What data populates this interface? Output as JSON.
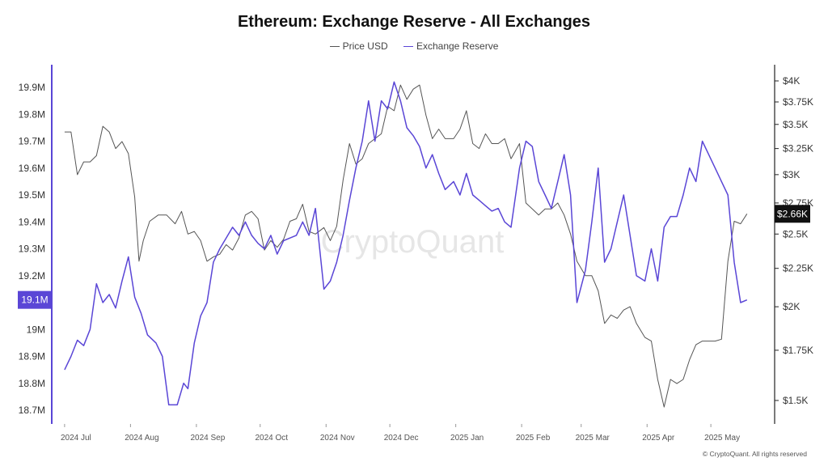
{
  "chart_data": {
    "type": "line",
    "title": "Ethereum: Exchange Reserve - All Exchanges",
    "watermark": "CryptoQuant",
    "copyright": "© CryptoQuant. All rights reserved",
    "x_ticks": [
      "2024 Jul",
      "2024 Aug",
      "2024 Sep",
      "2024 Oct",
      "2024 Nov",
      "2024 Dec",
      "2025 Jan",
      "2025 Feb",
      "2025 Mar",
      "2025 Apr",
      "2025 May"
    ],
    "y_left": {
      "ticks": [
        18.7,
        18.8,
        18.9,
        19.0,
        19.1,
        19.2,
        19.3,
        19.4,
        19.5,
        19.6,
        19.7,
        19.8,
        19.9
      ],
      "tick_labels": [
        "18.7M",
        "18.8M",
        "18.9M",
        "19M",
        "19.1M",
        "19.2M",
        "19.3M",
        "19.4M",
        "19.5M",
        "19.6M",
        "19.7M",
        "19.8M",
        "19.9M"
      ],
      "range": [
        18.7,
        19.9
      ]
    },
    "y_right": {
      "ticks": [
        1500,
        1750,
        2000,
        2250,
        2500,
        2750,
        3000,
        3250,
        3500,
        3750,
        4000
      ],
      "tick_labels": [
        "$1.5K",
        "$1.75K",
        "$2K",
        "$2.25K",
        "$2.5K",
        "$2.75K",
        "$3K",
        "$3.25K",
        "$3.5K",
        "$3.75K",
        "$4K"
      ],
      "range": [
        1400,
        4000
      ],
      "log": true
    },
    "current_reserve_label": "19.1M",
    "current_price_label": "$2.66K",
    "legend_position": "top-center",
    "colors": {
      "price": "#555555",
      "reserve": "#5a46d6",
      "badge_reserve": "#5a46d6",
      "badge_price": "#111111"
    },
    "series": [
      {
        "name": "Price USD",
        "axis": "right",
        "points": [
          [
            "2024-07-01",
            3420
          ],
          [
            "2024-07-04",
            3420
          ],
          [
            "2024-07-07",
            3000
          ],
          [
            "2024-07-10",
            3120
          ],
          [
            "2024-07-13",
            3120
          ],
          [
            "2024-07-16",
            3180
          ],
          [
            "2024-07-19",
            3480
          ],
          [
            "2024-07-22",
            3420
          ],
          [
            "2024-07-25",
            3250
          ],
          [
            "2024-07-28",
            3320
          ],
          [
            "2024-07-31",
            3200
          ],
          [
            "2024-08-03",
            2800
          ],
          [
            "2024-08-05",
            2300
          ],
          [
            "2024-08-07",
            2450
          ],
          [
            "2024-08-10",
            2600
          ],
          [
            "2024-08-14",
            2650
          ],
          [
            "2024-08-18",
            2650
          ],
          [
            "2024-08-22",
            2580
          ],
          [
            "2024-08-25",
            2680
          ],
          [
            "2024-08-28",
            2500
          ],
          [
            "2024-08-31",
            2520
          ],
          [
            "2024-09-03",
            2450
          ],
          [
            "2024-09-06",
            2300
          ],
          [
            "2024-09-09",
            2330
          ],
          [
            "2024-09-12",
            2350
          ],
          [
            "2024-09-15",
            2420
          ],
          [
            "2024-09-18",
            2380
          ],
          [
            "2024-09-21",
            2470
          ],
          [
            "2024-09-24",
            2650
          ],
          [
            "2024-09-27",
            2680
          ],
          [
            "2024-09-30",
            2620
          ],
          [
            "2024-10-03",
            2380
          ],
          [
            "2024-10-06",
            2450
          ],
          [
            "2024-10-09",
            2400
          ],
          [
            "2024-10-12",
            2460
          ],
          [
            "2024-10-15",
            2600
          ],
          [
            "2024-10-18",
            2620
          ],
          [
            "2024-10-21",
            2740
          ],
          [
            "2024-10-24",
            2520
          ],
          [
            "2024-10-27",
            2500
          ],
          [
            "2024-10-31",
            2550
          ],
          [
            "2024-11-03",
            2450
          ],
          [
            "2024-11-06",
            2560
          ],
          [
            "2024-11-09",
            2950
          ],
          [
            "2024-11-12",
            3300
          ],
          [
            "2024-11-15",
            3100
          ],
          [
            "2024-11-18",
            3150
          ],
          [
            "2024-11-21",
            3300
          ],
          [
            "2024-11-24",
            3350
          ],
          [
            "2024-11-27",
            3400
          ],
          [
            "2024-11-30",
            3700
          ],
          [
            "2024-12-03",
            3650
          ],
          [
            "2024-12-06",
            3950
          ],
          [
            "2024-12-09",
            3780
          ],
          [
            "2024-12-12",
            3900
          ],
          [
            "2024-12-15",
            3950
          ],
          [
            "2024-12-18",
            3600
          ],
          [
            "2024-12-21",
            3350
          ],
          [
            "2024-12-24",
            3450
          ],
          [
            "2024-12-27",
            3350
          ],
          [
            "2024-12-31",
            3350
          ],
          [
            "2025-01-03",
            3450
          ],
          [
            "2025-01-06",
            3650
          ],
          [
            "2025-01-09",
            3300
          ],
          [
            "2025-01-12",
            3250
          ],
          [
            "2025-01-15",
            3400
          ],
          [
            "2025-01-18",
            3300
          ],
          [
            "2025-01-21",
            3300
          ],
          [
            "2025-01-24",
            3350
          ],
          [
            "2025-01-27",
            3150
          ],
          [
            "2025-01-31",
            3300
          ],
          [
            "2025-02-03",
            2750
          ],
          [
            "2025-02-06",
            2700
          ],
          [
            "2025-02-09",
            2650
          ],
          [
            "2025-02-12",
            2700
          ],
          [
            "2025-02-15",
            2700
          ],
          [
            "2025-02-18",
            2750
          ],
          [
            "2025-02-21",
            2650
          ],
          [
            "2025-02-24",
            2500
          ],
          [
            "2025-02-27",
            2300
          ],
          [
            "2025-03-03",
            2200
          ],
          [
            "2025-03-06",
            2200
          ],
          [
            "2025-03-09",
            2100
          ],
          [
            "2025-03-12",
            1900
          ],
          [
            "2025-03-15",
            1950
          ],
          [
            "2025-03-18",
            1930
          ],
          [
            "2025-03-21",
            1980
          ],
          [
            "2025-03-24",
            2000
          ],
          [
            "2025-03-27",
            1900
          ],
          [
            "2025-03-31",
            1820
          ],
          [
            "2025-04-03",
            1800
          ],
          [
            "2025-04-06",
            1600
          ],
          [
            "2025-04-09",
            1470
          ],
          [
            "2025-04-12",
            1600
          ],
          [
            "2025-04-15",
            1580
          ],
          [
            "2025-04-18",
            1600
          ],
          [
            "2025-04-21",
            1700
          ],
          [
            "2025-04-24",
            1780
          ],
          [
            "2025-04-27",
            1800
          ],
          [
            "2025-04-30",
            1800
          ],
          [
            "2025-05-03",
            1800
          ],
          [
            "2025-05-06",
            1810
          ],
          [
            "2025-05-09",
            2300
          ],
          [
            "2025-05-12",
            2600
          ],
          [
            "2025-05-15",
            2580
          ],
          [
            "2025-05-18",
            2660
          ]
        ]
      },
      {
        "name": "Exchange Reserve",
        "axis": "left",
        "points": [
          [
            "2024-07-01",
            18.85
          ],
          [
            "2024-07-04",
            18.9
          ],
          [
            "2024-07-07",
            18.96
          ],
          [
            "2024-07-10",
            18.94
          ],
          [
            "2024-07-13",
            19.0
          ],
          [
            "2024-07-16",
            19.17
          ],
          [
            "2024-07-19",
            19.1
          ],
          [
            "2024-07-22",
            19.13
          ],
          [
            "2024-07-25",
            19.08
          ],
          [
            "2024-07-28",
            19.18
          ],
          [
            "2024-07-31",
            19.27
          ],
          [
            "2024-08-03",
            19.12
          ],
          [
            "2024-08-06",
            19.06
          ],
          [
            "2024-08-09",
            18.98
          ],
          [
            "2024-08-13",
            18.95
          ],
          [
            "2024-08-16",
            18.9
          ],
          [
            "2024-08-19",
            18.72
          ],
          [
            "2024-08-23",
            18.72
          ],
          [
            "2024-08-26",
            18.8
          ],
          [
            "2024-08-28",
            18.78
          ],
          [
            "2024-08-31",
            18.95
          ],
          [
            "2024-09-03",
            19.05
          ],
          [
            "2024-09-06",
            19.1
          ],
          [
            "2024-09-09",
            19.25
          ],
          [
            "2024-09-12",
            19.3
          ],
          [
            "2024-09-15",
            19.34
          ],
          [
            "2024-09-18",
            19.38
          ],
          [
            "2024-09-21",
            19.35
          ],
          [
            "2024-09-24",
            19.4
          ],
          [
            "2024-09-27",
            19.35
          ],
          [
            "2024-09-30",
            19.32
          ],
          [
            "2024-10-03",
            19.3
          ],
          [
            "2024-10-06",
            19.35
          ],
          [
            "2024-10-09",
            19.28
          ],
          [
            "2024-10-12",
            19.33
          ],
          [
            "2024-10-15",
            19.34
          ],
          [
            "2024-10-18",
            19.35
          ],
          [
            "2024-10-21",
            19.4
          ],
          [
            "2024-10-24",
            19.35
          ],
          [
            "2024-10-27",
            19.45
          ],
          [
            "2024-10-31",
            19.15
          ],
          [
            "2024-11-03",
            19.18
          ],
          [
            "2024-11-06",
            19.25
          ],
          [
            "2024-11-09",
            19.35
          ],
          [
            "2024-11-12",
            19.48
          ],
          [
            "2024-11-15",
            19.6
          ],
          [
            "2024-11-18",
            19.7
          ],
          [
            "2024-11-21",
            19.85
          ],
          [
            "2024-11-24",
            19.7
          ],
          [
            "2024-11-27",
            19.85
          ],
          [
            "2024-11-30",
            19.82
          ],
          [
            "2024-12-03",
            19.92
          ],
          [
            "2024-12-06",
            19.85
          ],
          [
            "2024-12-09",
            19.75
          ],
          [
            "2024-12-12",
            19.72
          ],
          [
            "2024-12-15",
            19.68
          ],
          [
            "2024-12-18",
            19.6
          ],
          [
            "2024-12-21",
            19.65
          ],
          [
            "2024-12-24",
            19.58
          ],
          [
            "2024-12-27",
            19.52
          ],
          [
            "2024-12-31",
            19.55
          ],
          [
            "2025-01-03",
            19.5
          ],
          [
            "2025-01-06",
            19.58
          ],
          [
            "2025-01-09",
            19.5
          ],
          [
            "2025-01-12",
            19.48
          ],
          [
            "2025-01-15",
            19.46
          ],
          [
            "2025-01-18",
            19.44
          ],
          [
            "2025-01-21",
            19.45
          ],
          [
            "2025-01-24",
            19.4
          ],
          [
            "2025-01-27",
            19.38
          ],
          [
            "2025-01-31",
            19.6
          ],
          [
            "2025-02-03",
            19.7
          ],
          [
            "2025-02-06",
            19.68
          ],
          [
            "2025-02-09",
            19.55
          ],
          [
            "2025-02-12",
            19.5
          ],
          [
            "2025-02-15",
            19.45
          ],
          [
            "2025-02-18",
            19.55
          ],
          [
            "2025-02-21",
            19.65
          ],
          [
            "2025-02-24",
            19.5
          ],
          [
            "2025-02-27",
            19.1
          ],
          [
            "2025-03-03",
            19.22
          ],
          [
            "2025-03-06",
            19.4
          ],
          [
            "2025-03-09",
            19.6
          ],
          [
            "2025-03-12",
            19.25
          ],
          [
            "2025-03-15",
            19.3
          ],
          [
            "2025-03-18",
            19.4
          ],
          [
            "2025-03-21",
            19.5
          ],
          [
            "2025-03-24",
            19.35
          ],
          [
            "2025-03-27",
            19.2
          ],
          [
            "2025-03-31",
            19.18
          ],
          [
            "2025-04-03",
            19.3
          ],
          [
            "2025-04-06",
            19.18
          ],
          [
            "2025-04-09",
            19.38
          ],
          [
            "2025-04-12",
            19.42
          ],
          [
            "2025-04-15",
            19.42
          ],
          [
            "2025-04-18",
            19.5
          ],
          [
            "2025-04-21",
            19.6
          ],
          [
            "2025-04-24",
            19.55
          ],
          [
            "2025-04-27",
            19.7
          ],
          [
            "2025-04-30",
            19.65
          ],
          [
            "2025-05-03",
            19.6
          ],
          [
            "2025-05-06",
            19.55
          ],
          [
            "2025-05-09",
            19.5
          ],
          [
            "2025-05-12",
            19.25
          ],
          [
            "2025-05-15",
            19.1
          ],
          [
            "2025-05-18",
            19.11
          ]
        ]
      }
    ]
  }
}
